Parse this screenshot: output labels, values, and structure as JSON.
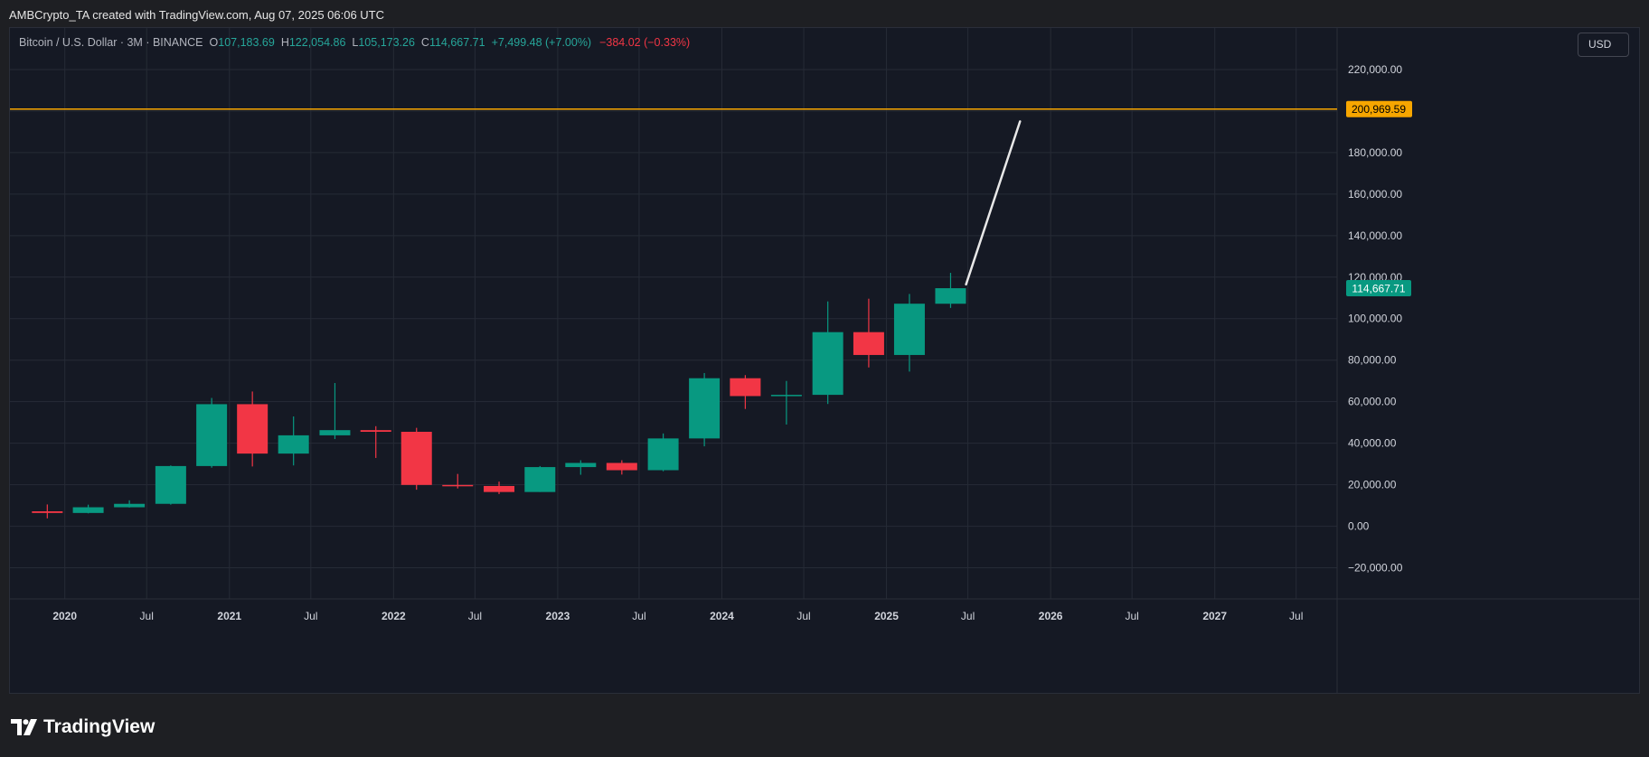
{
  "header": {
    "text": "AMBCrypto_TA created with TradingView.com, Aug 07, 2025 06:06 UTC"
  },
  "legend": {
    "symbol": "Bitcoin / U.S. Dollar · 3M · BINANCE",
    "o_label": "O",
    "o_value": "107,183.69",
    "h_label": "H",
    "h_value": "122,054.86",
    "l_label": "L",
    "l_value": "105,173.26",
    "c_label": "C",
    "c_value": "114,667.71",
    "change": "+7,499.48 (+7.00%)",
    "change2": "−384.02 (−0.33%)"
  },
  "currency": "USD",
  "footer": {
    "brand": "TradingView"
  },
  "colors": {
    "up": "#089981",
    "down": "#f23645",
    "level": "#f7a600",
    "trend": "#e8e8e8",
    "grid": "#262b36",
    "background": "#151924"
  },
  "chart_data": {
    "type": "candlestick",
    "title": "Bitcoin / U.S. Dollar · 3M · BINANCE",
    "xlabel": "",
    "ylabel": "",
    "ylim": [
      -35000,
      240000
    ],
    "xlim": [
      "2019-09-01",
      "2027-09-30"
    ],
    "grid": true,
    "y_ticks": [
      "−20,000.00",
      "0.00",
      "20,000.00",
      "40,000.00",
      "60,000.00",
      "80,000.00",
      "100,000.00",
      "120,000.00",
      "140,000.00",
      "160,000.00",
      "180,000.00",
      "200,000.00",
      "220,000.00"
    ],
    "y_tick_values": [
      -20000,
      0,
      20000,
      40000,
      60000,
      80000,
      100000,
      120000,
      140000,
      160000,
      180000,
      200000,
      220000
    ],
    "x_ticks": [
      {
        "label": "2020",
        "date": "2020-01-01",
        "bold": true
      },
      {
        "label": "Jul",
        "date": "2020-07-01",
        "bold": false
      },
      {
        "label": "2021",
        "date": "2021-01-01",
        "bold": true
      },
      {
        "label": "Jul",
        "date": "2021-07-01",
        "bold": false
      },
      {
        "label": "2022",
        "date": "2022-01-01",
        "bold": true
      },
      {
        "label": "Jul",
        "date": "2022-07-01",
        "bold": false
      },
      {
        "label": "2023",
        "date": "2023-01-01",
        "bold": true
      },
      {
        "label": "Jul",
        "date": "2023-07-01",
        "bold": false
      },
      {
        "label": "2024",
        "date": "2024-01-01",
        "bold": true
      },
      {
        "label": "Jul",
        "date": "2024-07-01",
        "bold": false
      },
      {
        "label": "2025",
        "date": "2025-01-01",
        "bold": true
      },
      {
        "label": "Jul",
        "date": "2025-07-01",
        "bold": false
      },
      {
        "label": "2026",
        "date": "2026-01-01",
        "bold": true
      },
      {
        "label": "Jul",
        "date": "2026-07-01",
        "bold": false
      },
      {
        "label": "2027",
        "date": "2027-01-01",
        "bold": true
      },
      {
        "label": "Jul",
        "date": "2027-07-01",
        "bold": false
      }
    ],
    "candles": [
      {
        "period": "2020-01-01",
        "open": 7200,
        "high": 10500,
        "low": 3800,
        "close": 6400
      },
      {
        "period": "2020-04-01",
        "open": 6400,
        "high": 10400,
        "low": 6200,
        "close": 9150
      },
      {
        "period": "2020-07-01",
        "open": 9150,
        "high": 12500,
        "low": 9000,
        "close": 10800
      },
      {
        "period": "2020-10-01",
        "open": 10800,
        "high": 29300,
        "low": 10400,
        "close": 29000
      },
      {
        "period": "2021-01-01",
        "open": 29000,
        "high": 61800,
        "low": 28200,
        "close": 58800
      },
      {
        "period": "2021-04-01",
        "open": 58800,
        "high": 64900,
        "low": 28800,
        "close": 35000
      },
      {
        "period": "2021-07-01",
        "open": 35000,
        "high": 52900,
        "low": 29300,
        "close": 43800
      },
      {
        "period": "2021-10-01",
        "open": 43800,
        "high": 69000,
        "low": 42000,
        "close": 46300
      },
      {
        "period": "2022-01-01",
        "open": 46300,
        "high": 48200,
        "low": 32900,
        "close": 45500
      },
      {
        "period": "2022-04-01",
        "open": 45500,
        "high": 47400,
        "low": 17600,
        "close": 19900
      },
      {
        "period": "2022-07-01",
        "open": 19900,
        "high": 25200,
        "low": 18200,
        "close": 19400
      },
      {
        "period": "2022-10-01",
        "open": 19400,
        "high": 21500,
        "low": 15500,
        "close": 16500
      },
      {
        "period": "2023-01-01",
        "open": 16500,
        "high": 29000,
        "low": 16500,
        "close": 28500
      },
      {
        "period": "2023-04-01",
        "open": 28500,
        "high": 31800,
        "low": 24800,
        "close": 30500
      },
      {
        "period": "2023-07-01",
        "open": 30500,
        "high": 31800,
        "low": 24900,
        "close": 27000
      },
      {
        "period": "2023-10-01",
        "open": 27000,
        "high": 44700,
        "low": 26500,
        "close": 42300
      },
      {
        "period": "2024-01-01",
        "open": 42300,
        "high": 73800,
        "low": 38500,
        "close": 71300
      },
      {
        "period": "2024-04-01",
        "open": 71300,
        "high": 72800,
        "low": 56500,
        "close": 62700
      },
      {
        "period": "2024-07-01",
        "open": 62700,
        "high": 70000,
        "low": 49000,
        "close": 63300
      },
      {
        "period": "2024-10-01",
        "open": 63300,
        "high": 108300,
        "low": 58900,
        "close": 93500
      },
      {
        "period": "2025-01-01",
        "open": 93500,
        "high": 109600,
        "low": 76500,
        "close": 82500
      },
      {
        "period": "2025-04-01",
        "open": 82500,
        "high": 111900,
        "low": 74500,
        "close": 107200
      },
      {
        "period": "2025-07-01",
        "open": 107183.69,
        "high": 122054.86,
        "low": 105173.26,
        "close": 114667.71
      }
    ],
    "annotations": [
      {
        "type": "horizontal_line",
        "value": 200969.59,
        "label": "200,969.59"
      },
      {
        "type": "trend_line",
        "from": {
          "date": "2025-07-01",
          "value": 116500
        },
        "to": {
          "date": "2025-10-25",
          "value": 195000
        }
      },
      {
        "type": "price_label",
        "value": 114667.71,
        "label": "114,667.71"
      }
    ]
  }
}
